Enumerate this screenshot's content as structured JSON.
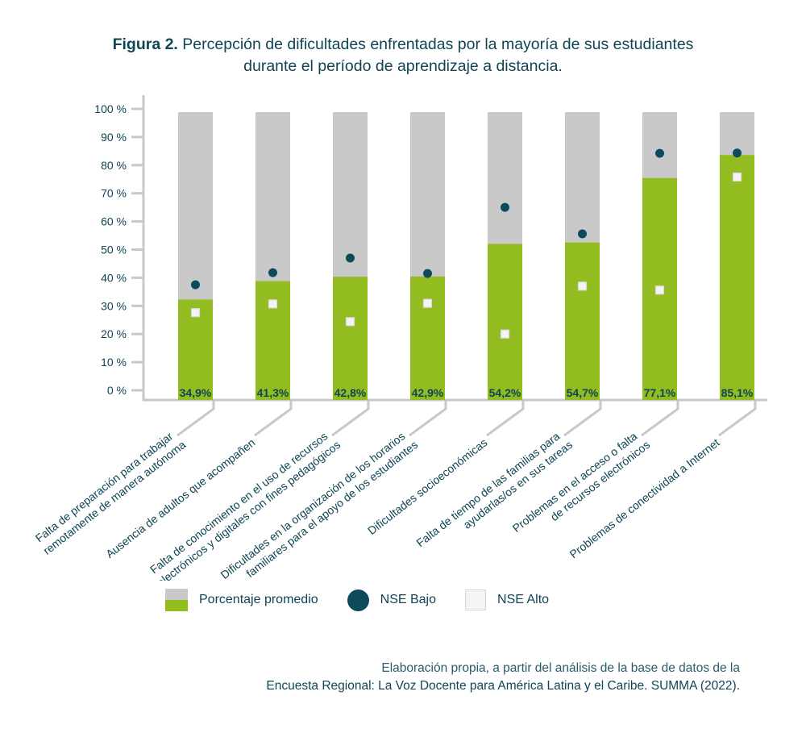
{
  "title": {
    "prefix": "Figura 2.",
    "line1": "Percepción de dificultades enfrentadas por la mayoría de sus estudiantes",
    "line2": "durante el período de aprendizaje a distancia."
  },
  "colors": {
    "text": "#0f4555",
    "bar_fill": "#93bc21",
    "bar_background": "#c9c9c9",
    "nse_bajo": "#0d4b5c",
    "nse_alto": "#f4f4f4",
    "axis": "#c8c8c8"
  },
  "legend": {
    "items": [
      {
        "label": "Porcentaje promedio",
        "symbol": "bar"
      },
      {
        "label": "NSE Bajo",
        "symbol": "dot"
      },
      {
        "label": "NSE Alto",
        "symbol": "square"
      }
    ]
  },
  "source": {
    "line1": "Elaboración propia, a partir del análisis de la base de datos de la",
    "line2": "Encuesta Regional: La Voz Docente para América Latina y el Caribe. SUMMA (2022)."
  },
  "chart_data": {
    "type": "bar",
    "title": "Figura 2. Percepción de dificultades enfrentadas por la mayoría de sus estudiantes durante el período de aprendizaje a distancia.",
    "xlabel": "",
    "ylabel": "",
    "ylim": [
      0,
      100
    ],
    "yticks": [
      "0 %",
      "10 %",
      "20 %",
      "30 %",
      "40 %",
      "50 %",
      "60 %",
      "70 %",
      "80 %",
      "90 %",
      "100 %"
    ],
    "grid": false,
    "legend_position": "bottom",
    "categories": [
      [
        "Falta de preparación para trabajar",
        "remotamente de manera autónoma"
      ],
      [
        "Ausencia de adultos que acompañen"
      ],
      [
        "Falta de conocimiento en el uso de recursos",
        "electrónicos y digitales con fines pedagógicos"
      ],
      [
        "Dificultades en la organización de los horarios",
        "familiares para el apoyo de los estudiantes"
      ],
      [
        "Dificultades socioeconómicas"
      ],
      [
        "Falta de tiempo de las familias para",
        "ayudarlas/os en sus tareas"
      ],
      [
        "Problemas en el acceso o falta",
        "de recursos electrónicos"
      ],
      [
        "Problemas de conectividad a Internet"
      ]
    ],
    "series": [
      {
        "name": "Porcentaje promedio",
        "type": "bar",
        "values": [
          34.9,
          41.3,
          42.8,
          42.9,
          54.2,
          54.7,
          77.1,
          85.1
        ],
        "labels": [
          "34,9%",
          "41,3%",
          "42,8%",
          "42,9%",
          "54,2%",
          "54,7%",
          "77,1%",
          "85,1%"
        ]
      },
      {
        "name": "NSE Bajo",
        "type": "scatter",
        "marker": "circle",
        "values": [
          37.5,
          41.8,
          47.0,
          41.5,
          65.0,
          55.6,
          84.2,
          84.3
        ]
      },
      {
        "name": "NSE Alto",
        "type": "scatter",
        "marker": "square",
        "values": [
          27.6,
          30.7,
          24.4,
          30.9,
          20.0,
          37.0,
          35.6,
          75.8
        ]
      }
    ]
  }
}
